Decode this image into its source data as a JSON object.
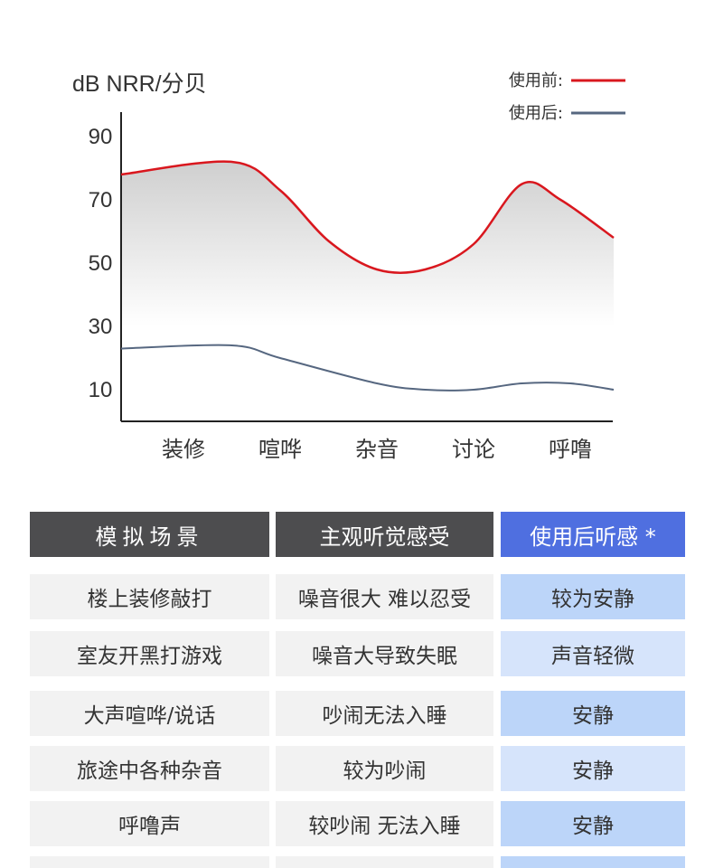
{
  "chart_data": {
    "type": "area",
    "ylabel": "dB NRR/分贝",
    "y_ticks": [
      "90",
      "70",
      "50",
      "30",
      "10"
    ],
    "y_tick_values": [
      90,
      70,
      50,
      30,
      10
    ],
    "ylim": [
      0,
      100
    ],
    "categories": [
      "装修",
      "喧哗",
      "杂音",
      "讨论",
      "呼噜"
    ],
    "series": [
      {
        "name": "使用前:",
        "color": "#d9171e",
        "x": [
          0,
          0.5,
          1,
          1.5,
          2,
          2.5,
          3,
          3.5,
          3.9,
          4.4
        ],
        "values": [
          78,
          82,
          73,
          57,
          48,
          48,
          56,
          75,
          70,
          58
        ]
      },
      {
        "name": "使用后:",
        "color": "#566780",
        "x": [
          0,
          0.5,
          1,
          2,
          2.5,
          3,
          3.5,
          4,
          4.4
        ],
        "values": [
          23,
          24,
          20,
          12,
          10,
          10,
          12,
          12,
          10
        ]
      }
    ],
    "legend_position": "top-right",
    "grid": false
  },
  "table": {
    "headers": [
      "模拟场景",
      "主观听觉感受",
      "使用后听感 *"
    ],
    "rows": [
      [
        "楼上装修敲打",
        "噪音很大 难以忍受",
        "较为安静"
      ],
      [
        "室友开黑打游戏",
        "噪音大导致失眠",
        "声音轻微"
      ],
      [
        "大声喧哗/说话",
        "吵闹无法入睡",
        "安静"
      ],
      [
        "旅途中各种杂音",
        "较为吵闹",
        "安静"
      ],
      [
        "呼噜声",
        "较吵闹 无法入睡",
        "安静"
      ]
    ],
    "colors": {
      "header_dark": "#4d4d4f",
      "header_blue": "#4f6fe0",
      "cell_gray": "#f2f2f2",
      "cell_blue_light": "#d6e4fb",
      "cell_blue": "#bcd5f9"
    }
  }
}
